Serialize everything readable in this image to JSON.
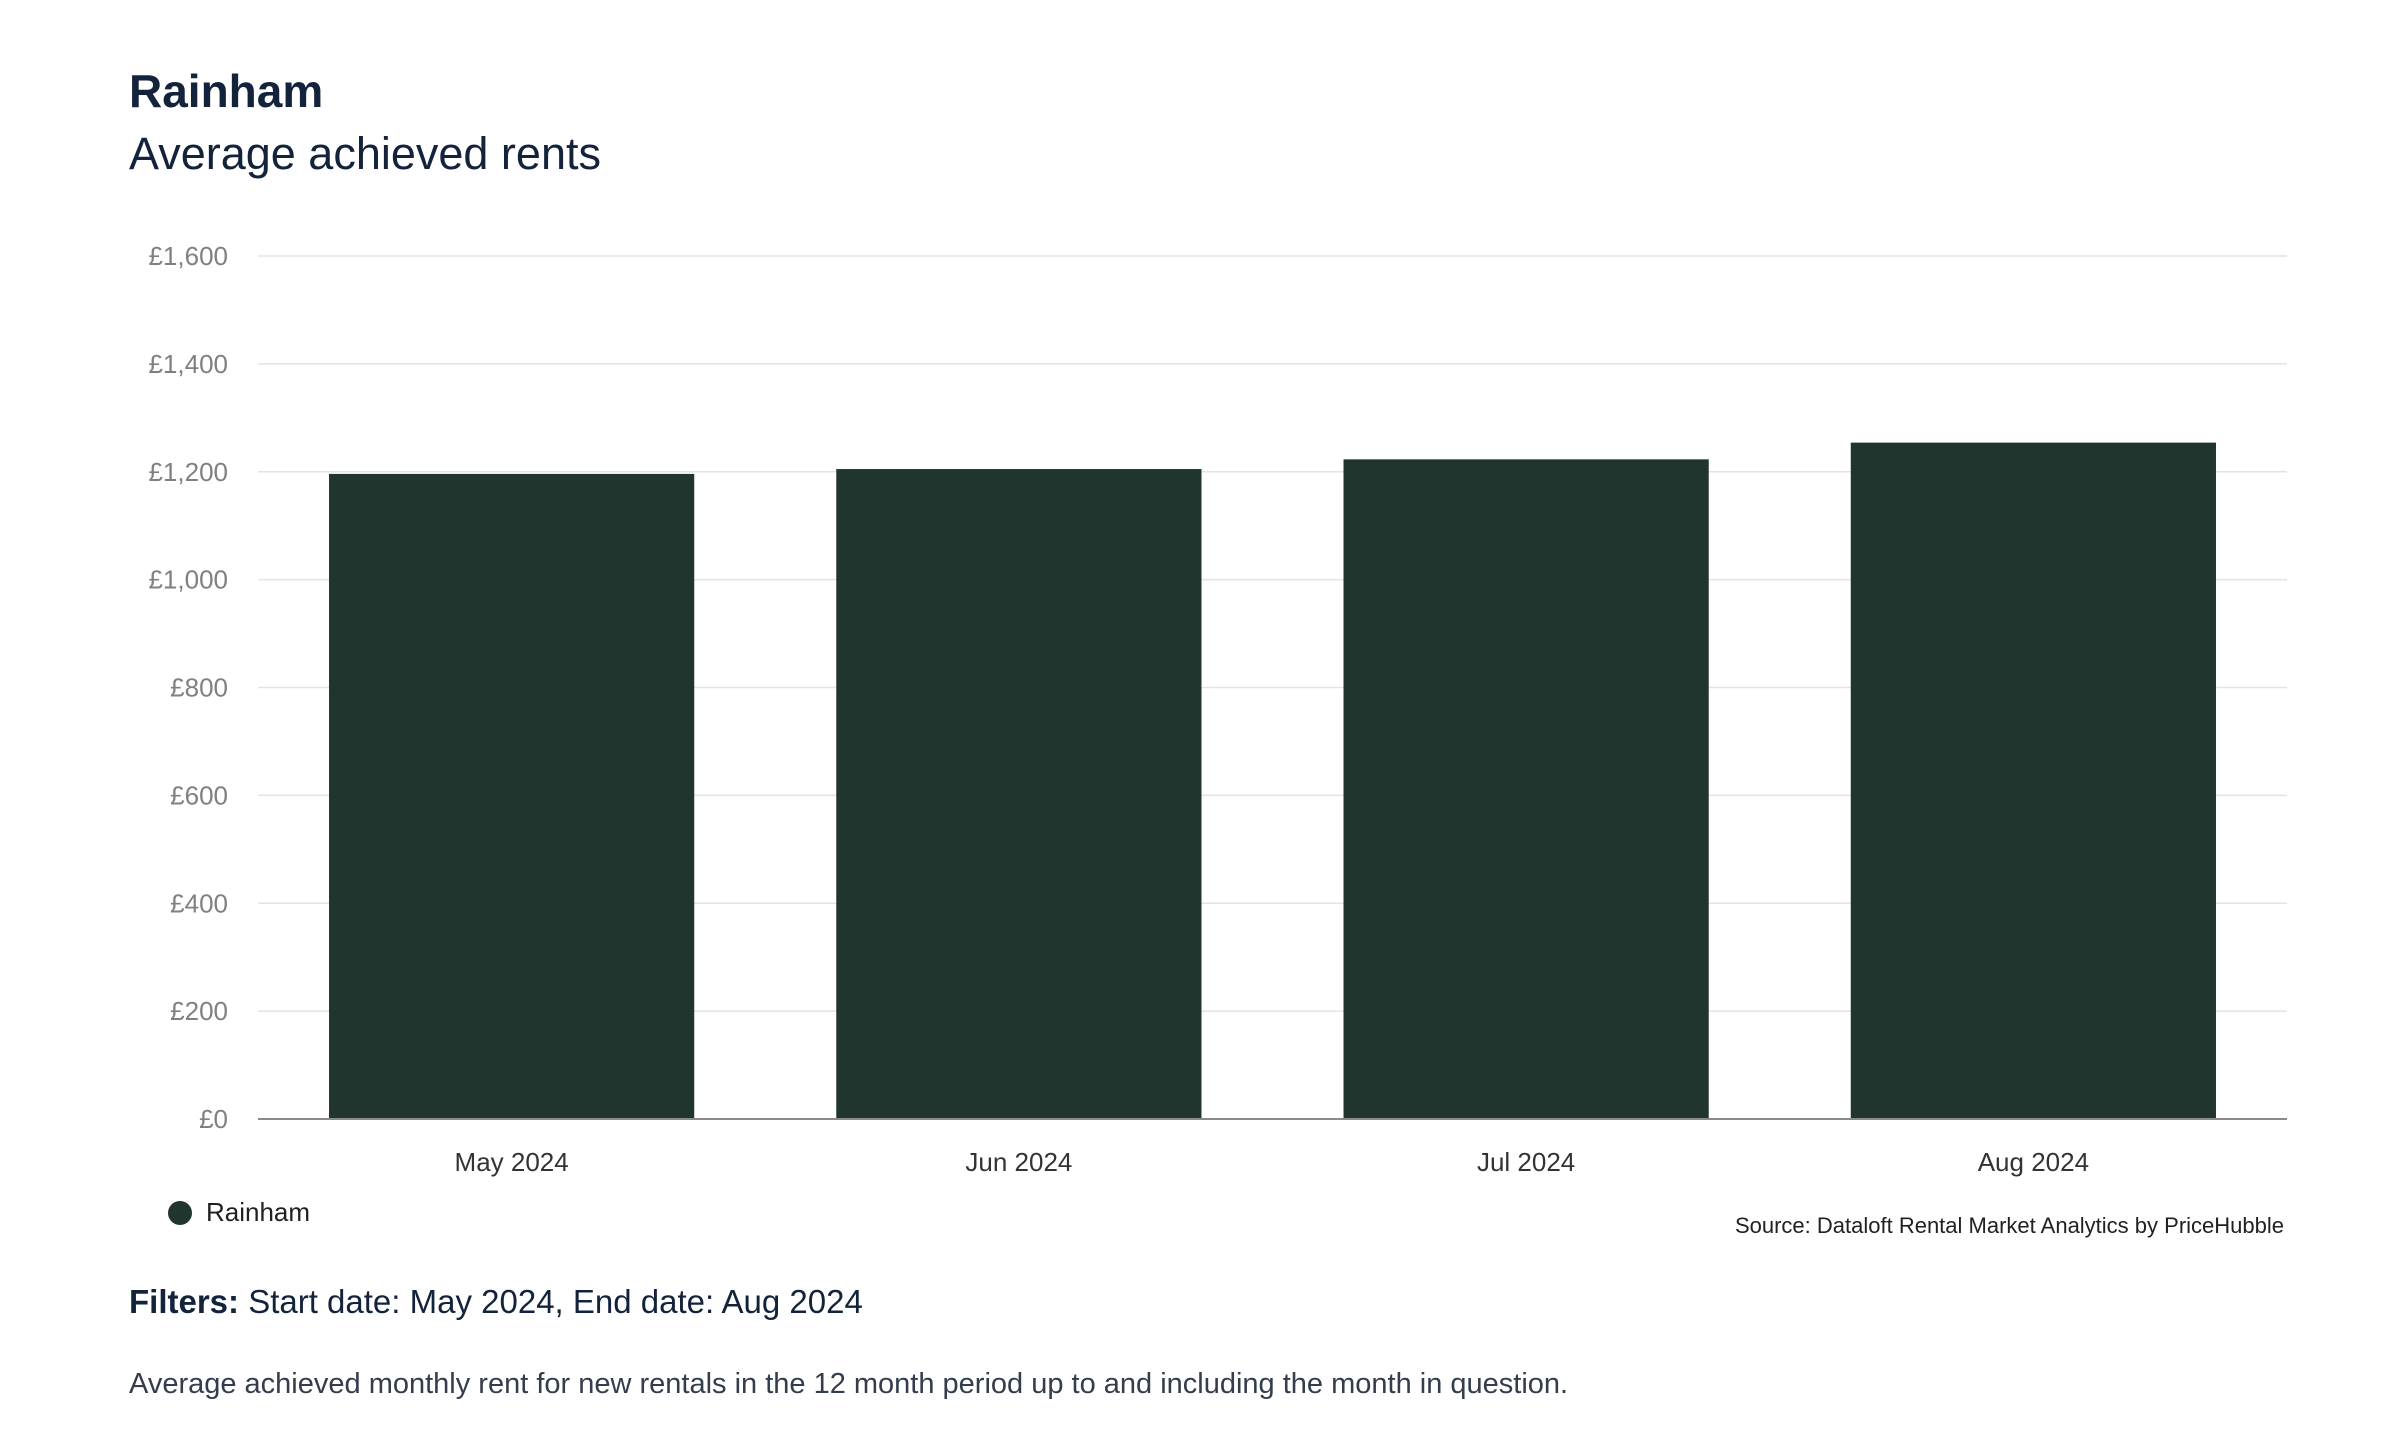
{
  "header": {
    "title": "Rainham",
    "subtitle": "Average achieved rents"
  },
  "chart_data": {
    "type": "bar",
    "categories": [
      "May 2024",
      "Jun 2024",
      "Jul 2024",
      "Aug 2024"
    ],
    "series": [
      {
        "name": "Rainham",
        "values": [
          1196,
          1205,
          1223,
          1254
        ],
        "color": "#21352f"
      }
    ],
    "ylim": [
      0,
      1600
    ],
    "yticks": [
      0,
      200,
      400,
      600,
      800,
      1000,
      1200,
      1400,
      1600
    ],
    "ytick_labels": [
      "£0",
      "£200",
      "£400",
      "£600",
      "£800",
      "£1,000",
      "£1,200",
      "£1,400",
      "£1,600"
    ],
    "grid": true,
    "legend_position": "bottom-left"
  },
  "legend": {
    "label": "Rainham",
    "color": "#21352f"
  },
  "source": "Source: Dataloft Rental Market Analytics by PriceHubble",
  "filters": {
    "label": "Filters:",
    "text": "Start date: May 2024, End date: Aug 2024"
  },
  "footnote": "Average achieved monthly rent for new rentals in the 12 month period up to and including the month in question."
}
